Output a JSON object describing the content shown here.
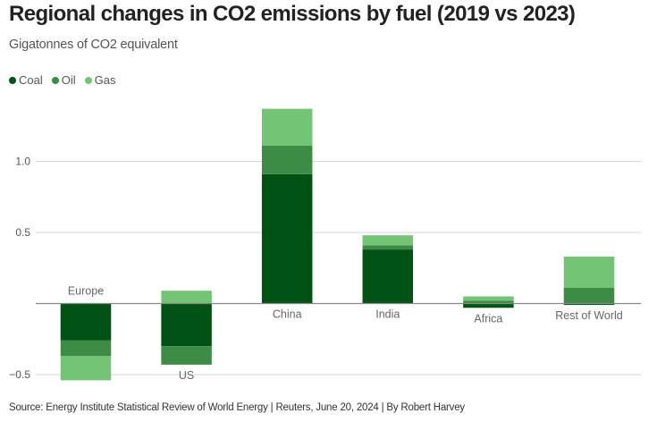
{
  "title": "Regional changes in CO2 emissions by fuel (2019 vs 2023)",
  "subtitle": "Gigatonnes of CO2 equivalent",
  "source": "Source: Energy Institute Statistical Review of World Energy | Reuters, June 20, 2024 | By Robert Harvey",
  "legend": [
    {
      "label": "Coal",
      "color": "#005214"
    },
    {
      "label": "Oil",
      "color": "#3d8c46"
    },
    {
      "label": "Gas",
      "color": "#74c476"
    }
  ],
  "chart_data": {
    "type": "bar",
    "stacked": true,
    "title": "Regional changes in CO2 emissions by fuel (2019 vs 2023)",
    "subtitle": "Gigatonnes of CO2 equivalent",
    "xlabel": "",
    "ylabel": "",
    "categories": [
      "Europe",
      "US",
      "China",
      "India",
      "Africa",
      "Rest of World"
    ],
    "series": [
      {
        "name": "Coal",
        "color": "#005214",
        "values": [
          -0.26,
          -0.3,
          0.91,
          0.38,
          -0.03,
          -0.01
        ]
      },
      {
        "name": "Oil",
        "color": "#3d8c46",
        "values": [
          -0.11,
          -0.13,
          0.2,
          0.03,
          0.02,
          0.11
        ]
      },
      {
        "name": "Gas",
        "color": "#74c476",
        "values": [
          -0.17,
          0.09,
          0.26,
          0.07,
          0.03,
          0.22
        ]
      }
    ],
    "yticks": [
      -0.5,
      0.5,
      1.0
    ],
    "ytick_labels": [
      "−0.5",
      "0.5",
      "1.0"
    ],
    "ylim": [
      -0.57,
      1.5
    ],
    "grid": true,
    "legend_position": "top-left"
  }
}
